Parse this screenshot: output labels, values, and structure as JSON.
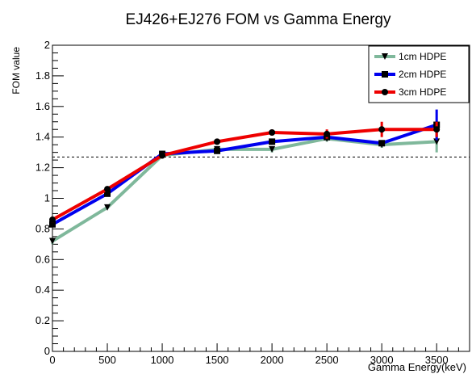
{
  "chart_data": {
    "type": "line",
    "title": "EJ426+EJ276 FOM vs Gamma Energy",
    "xlabel": "Gamma Energy(keV)",
    "ylabel": "FOM value",
    "xlim": [
      0,
      3800
    ],
    "ylim": [
      0,
      2
    ],
    "x_ticks": [
      0,
      500,
      1000,
      1500,
      2000,
      2500,
      3000,
      3500
    ],
    "x_tick_labels": [
      "0",
      "500",
      "1000",
      "1500",
      "2000",
      "2500",
      "3000",
      "3500"
    ],
    "y_ticks": [
      0,
      0.2,
      0.4,
      0.6,
      0.8,
      1,
      1.2,
      1.4,
      1.6,
      1.8,
      2
    ],
    "y_tick_labels": [
      "0",
      "0.2",
      "0.4",
      "0.6",
      "0.8",
      "1",
      "1.2",
      "1.4",
      "1.6",
      "1.8",
      "2"
    ],
    "grid": false,
    "legend_position": "top-right",
    "reference_line": {
      "y": 1.27,
      "style": "dashed"
    },
    "series": [
      {
        "name": "1cm HDPE",
        "color": "#7fb89b",
        "marker": "triangle-down",
        "x": [
          0,
          500,
          1000,
          1500,
          2000,
          2500,
          3000,
          3500
        ],
        "y": [
          0.72,
          0.94,
          1.28,
          1.32,
          1.32,
          1.39,
          1.35,
          1.37
        ],
        "yerr": [
          0.02,
          0.01,
          0.02,
          0.02,
          0.02,
          0.02,
          0.02,
          0.07
        ]
      },
      {
        "name": "2cm HDPE",
        "color": "#0000ee",
        "marker": "square",
        "x": [
          0,
          500,
          1000,
          1500,
          2000,
          2500,
          3000,
          3500
        ],
        "y": [
          0.83,
          1.03,
          1.29,
          1.31,
          1.37,
          1.4,
          1.36,
          1.48
        ],
        "yerr": [
          0.02,
          0.01,
          0.02,
          0.02,
          0.02,
          0.02,
          0.02,
          0.1
        ]
      },
      {
        "name": "3cm HDPE",
        "color": "#ee0000",
        "marker": "circle",
        "x": [
          0,
          500,
          1000,
          1500,
          2000,
          2500,
          3000,
          3500
        ],
        "y": [
          0.86,
          1.06,
          1.28,
          1.37,
          1.43,
          1.42,
          1.45,
          1.45
        ],
        "yerr": [
          0.02,
          0.01,
          0.02,
          0.02,
          0.02,
          0.03,
          0.05,
          0.05
        ]
      }
    ]
  }
}
